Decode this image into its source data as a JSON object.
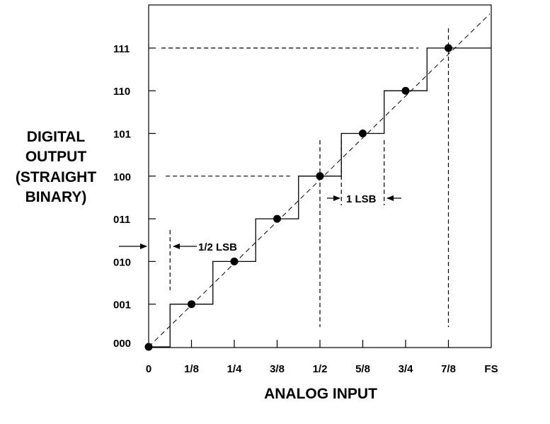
{
  "chart_data": {
    "type": "line",
    "xlabel": "ANALOG INPUT",
    "ylabel_lines": [
      "DIGITAL",
      "OUTPUT",
      "(STRAIGHT",
      "BINARY)"
    ],
    "x_ticks": [
      {
        "value": 0,
        "label": "0"
      },
      {
        "value": 1,
        "label": "1/8"
      },
      {
        "value": 2,
        "label": "1/4"
      },
      {
        "value": 3,
        "label": "3/8"
      },
      {
        "value": 4,
        "label": "1/2"
      },
      {
        "value": 5,
        "label": "5/8"
      },
      {
        "value": 6,
        "label": "3/4"
      },
      {
        "value": 7,
        "label": "7/8"
      },
      {
        "value": 8,
        "label": "FS"
      }
    ],
    "y_ticks": [
      {
        "value": 0,
        "label": "000"
      },
      {
        "value": 1,
        "label": "001"
      },
      {
        "value": 2,
        "label": "010"
      },
      {
        "value": 3,
        "label": "011"
      },
      {
        "value": 4,
        "label": "100"
      },
      {
        "value": 5,
        "label": "101"
      },
      {
        "value": 6,
        "label": "110"
      },
      {
        "value": 7,
        "label": "111"
      }
    ],
    "xlim": [
      0,
      8
    ],
    "ylim": [
      0,
      7
    ],
    "series": [
      {
        "kind": "staircase",
        "x": [
          0,
          0.5,
          0.5,
          1.5,
          1.5,
          2.5,
          2.5,
          3.5,
          3.5,
          4.5,
          4.5,
          5.5,
          5.5,
          6.5,
          6.5,
          8
        ],
        "y": [
          0,
          0,
          1,
          1,
          2,
          2,
          3,
          3,
          4,
          4,
          5,
          5,
          6,
          6,
          7,
          7
        ]
      },
      {
        "kind": "ideal-diagonal",
        "x": [
          0,
          8
        ],
        "y": [
          0,
          8
        ]
      },
      {
        "kind": "code-centers",
        "x": [
          0,
          1,
          2,
          3,
          4,
          5,
          6,
          7
        ],
        "y": [
          0,
          1,
          2,
          3,
          4,
          5,
          6,
          7
        ]
      }
    ],
    "annotations": {
      "half_lsb": "1/2 LSB",
      "one_lsb": "1 LSB"
    },
    "grid": false
  }
}
